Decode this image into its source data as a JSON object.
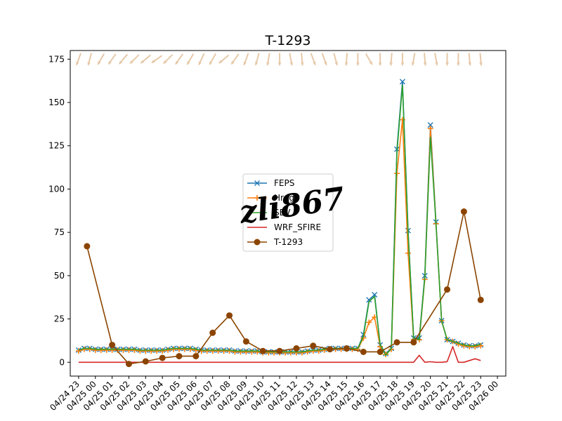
{
  "chart_data": {
    "type": "line",
    "title": "T-1293",
    "xlabel": "",
    "ylabel": "",
    "ylim": [
      -8,
      180
    ],
    "y_ticks": [
      0,
      25,
      50,
      75,
      100,
      125,
      150,
      175
    ],
    "x_start": "04/24 22:30",
    "x_end": "04/26 00:30",
    "x_ticks": [
      "04/24 23",
      "04/25 00",
      "04/25 01",
      "04/25 02",
      "04/25 03",
      "04/25 04",
      "04/25 05",
      "04/25 06",
      "04/25 07",
      "04/25 08",
      "04/25 09",
      "04/25 10",
      "04/25 11",
      "04/25 12",
      "04/25 13",
      "04/25 14",
      "04/25 15",
      "04/25 16",
      "04/25 17",
      "04/25 18",
      "04/25 19",
      "04/25 20",
      "04/25 21",
      "04/25 22",
      "04/25 23",
      "04/26 00"
    ],
    "legend_position": "center",
    "series": [
      {
        "name": "FEPS",
        "color": "#1f77b4",
        "marker": "x",
        "x": [
          "04/24 23:00",
          "04/24 23:20",
          "04/24 23:40",
          "04/25 00:00",
          "04/25 00:20",
          "04/25 00:40",
          "04/25 01:00",
          "04/25 01:20",
          "04/25 01:40",
          "04/25 02:00",
          "04/25 02:20",
          "04/25 02:40",
          "04/25 03:00",
          "04/25 03:20",
          "04/25 03:40",
          "04/25 04:00",
          "04/25 04:20",
          "04/25 04:40",
          "04/25 05:00",
          "04/25 05:20",
          "04/25 05:40",
          "04/25 06:00",
          "04/25 06:20",
          "04/25 06:40",
          "04/25 07:00",
          "04/25 07:20",
          "04/25 07:40",
          "04/25 08:00",
          "04/25 08:20",
          "04/25 08:40",
          "04/25 09:00",
          "04/25 09:20",
          "04/25 09:40",
          "04/25 10:00",
          "04/25 10:20",
          "04/25 10:40",
          "04/25 11:00",
          "04/25 11:20",
          "04/25 11:40",
          "04/25 12:00",
          "04/25 12:20",
          "04/25 12:40",
          "04/25 13:00",
          "04/25 13:20",
          "04/25 13:40",
          "04/25 14:00",
          "04/25 14:20",
          "04/25 14:40",
          "04/25 15:00",
          "04/25 15:20",
          "04/25 15:40",
          "04/25 16:00",
          "04/25 16:20",
          "04/25 16:40",
          "04/25 17:00",
          "04/25 17:20",
          "04/25 17:40",
          "04/25 18:00",
          "04/25 18:20",
          "04/25 18:40",
          "04/25 19:00",
          "04/25 19:20",
          "04/25 19:40",
          "04/25 20:00",
          "04/25 20:20",
          "04/25 20:40",
          "04/25 21:00",
          "04/25 21:20",
          "04/25 21:40",
          "04/25 22:00",
          "04/25 22:20",
          "04/25 22:40",
          "04/25 23:00"
        ],
        "values": [
          7,
          8,
          8,
          7.5,
          7.5,
          7.5,
          7.5,
          7.5,
          7.5,
          7.5,
          7.5,
          7,
          7,
          7,
          7,
          7,
          7.5,
          8,
          8,
          8,
          8,
          7.5,
          7,
          7,
          7,
          7,
          7,
          7,
          6.5,
          6.5,
          6.5,
          6.5,
          6.5,
          6,
          6,
          6,
          6,
          6,
          6,
          6,
          6,
          6.5,
          7,
          7,
          7.5,
          8,
          8,
          8,
          8,
          8,
          8,
          16,
          36,
          39,
          10,
          5,
          8,
          123,
          162,
          76,
          14,
          14,
          50,
          137,
          81,
          24,
          13,
          12,
          11,
          10,
          9.5,
          9.5,
          10
        ]
      },
      {
        "name": "Hrdgs",
        "color": "#ff7f0e",
        "marker": "+",
        "x": [
          "04/24 23:00",
          "04/24 23:20",
          "04/24 23:40",
          "04/25 00:00",
          "04/25 00:20",
          "04/25 00:40",
          "04/25 01:00",
          "04/25 01:20",
          "04/25 01:40",
          "04/25 02:00",
          "04/25 02:20",
          "04/25 02:40",
          "04/25 03:00",
          "04/25 03:20",
          "04/25 03:40",
          "04/25 04:00",
          "04/25 04:20",
          "04/25 04:40",
          "04/25 05:00",
          "04/25 05:20",
          "04/25 05:40",
          "04/25 06:00",
          "04/25 06:20",
          "04/25 06:40",
          "04/25 07:00",
          "04/25 07:20",
          "04/25 07:40",
          "04/25 08:00",
          "04/25 08:20",
          "04/25 08:40",
          "04/25 09:00",
          "04/25 09:20",
          "04/25 09:40",
          "04/25 10:00",
          "04/25 10:20",
          "04/25 10:40",
          "04/25 11:00",
          "04/25 11:20",
          "04/25 11:40",
          "04/25 12:00",
          "04/25 12:20",
          "04/25 12:40",
          "04/25 13:00",
          "04/25 13:20",
          "04/25 13:40",
          "04/25 14:00",
          "04/25 14:20",
          "04/25 14:40",
          "04/25 15:00",
          "04/25 15:20",
          "04/25 15:40",
          "04/25 16:00",
          "04/25 16:20",
          "04/25 16:40",
          "04/25 17:00",
          "04/25 17:20",
          "04/25 17:40",
          "04/25 18:00",
          "04/25 18:20",
          "04/25 18:40",
          "04/25 19:00",
          "04/25 19:20",
          "04/25 19:40",
          "04/25 20:00",
          "04/25 20:20",
          "04/25 20:40",
          "04/25 21:00",
          "04/25 21:20",
          "04/25 21:40",
          "04/25 22:00",
          "04/25 22:20",
          "04/25 22:40",
          "04/25 23:00"
        ],
        "values": [
          6.5,
          7.5,
          7.5,
          7,
          7,
          7,
          7,
          7,
          7,
          7,
          7,
          6.5,
          6.5,
          6.5,
          6.5,
          6.5,
          7,
          7.5,
          7.5,
          7.5,
          7.5,
          7,
          6.5,
          6.5,
          6.5,
          6.5,
          6.5,
          6.5,
          6,
          6,
          6,
          6,
          6,
          5.5,
          5.5,
          5.5,
          5.5,
          5.5,
          5.5,
          5.5,
          5.5,
          6,
          6.5,
          6.5,
          7,
          7.5,
          7.5,
          7.5,
          7.5,
          7.5,
          7.5,
          14,
          23,
          26,
          9,
          4.5,
          7.5,
          109,
          140,
          63,
          13,
          13,
          48,
          135,
          80,
          24,
          13,
          12,
          10.5,
          9.5,
          9,
          9,
          9.5
        ]
      },
      {
        "name": "SEV",
        "color": "#2ca02c",
        "marker": "",
        "x": [
          "04/24 23:00",
          "04/24 23:20",
          "04/24 23:40",
          "04/25 00:00",
          "04/25 00:20",
          "04/25 00:40",
          "04/25 01:00",
          "04/25 01:20",
          "04/25 01:40",
          "04/25 02:00",
          "04/25 02:20",
          "04/25 02:40",
          "04/25 03:00",
          "04/25 03:20",
          "04/25 03:40",
          "04/25 04:00",
          "04/25 04:20",
          "04/25 04:40",
          "04/25 05:00",
          "04/25 05:20",
          "04/25 05:40",
          "04/25 06:00",
          "04/25 06:20",
          "04/25 06:40",
          "04/25 07:00",
          "04/25 07:20",
          "04/25 07:40",
          "04/25 08:00",
          "04/25 08:20",
          "04/25 08:40",
          "04/25 09:00",
          "04/25 09:20",
          "04/25 09:40",
          "04/25 10:00",
          "04/25 10:20",
          "04/25 10:40",
          "04/25 11:00",
          "04/25 11:20",
          "04/25 11:40",
          "04/25 12:00",
          "04/25 12:20",
          "04/25 12:40",
          "04/25 13:00",
          "04/25 13:20",
          "04/25 13:40",
          "04/25 14:00",
          "04/25 14:20",
          "04/25 14:40",
          "04/25 15:00",
          "04/25 15:20",
          "04/25 15:40",
          "04/25 16:00",
          "04/25 16:20",
          "04/25 16:40",
          "04/25 17:00",
          "04/25 17:20",
          "04/25 17:40",
          "04/25 18:00",
          "04/25 18:20",
          "04/25 18:40",
          "04/25 19:00",
          "04/25 19:20",
          "04/25 19:40",
          "04/25 20:00",
          "04/25 20:20",
          "04/25 20:40",
          "04/25 21:00",
          "04/25 21:20",
          "04/25 21:40",
          "04/25 22:00",
          "04/25 22:20",
          "04/25 22:40",
          "04/25 23:00"
        ],
        "values": [
          7,
          8,
          8,
          7.5,
          7.5,
          7.5,
          7.5,
          7.5,
          7.5,
          7.5,
          7.5,
          7,
          7,
          7,
          7,
          7,
          7.5,
          8,
          8,
          8,
          8,
          7.5,
          7,
          7,
          7,
          7,
          7,
          7,
          6.5,
          6.5,
          6.5,
          6.5,
          6.5,
          6,
          6,
          6,
          6,
          6,
          6,
          6,
          6,
          6.5,
          7,
          7,
          7.5,
          8,
          8,
          8,
          8,
          8,
          8,
          15,
          35,
          38,
          10,
          4,
          8,
          121,
          160,
          75,
          14,
          13,
          49,
          130,
          80,
          24,
          13,
          12,
          11,
          10,
          9.5,
          9.5,
          10.5
        ]
      },
      {
        "name": "WRF_SFIRE",
        "color": "#d62728",
        "marker": "",
        "x": [
          "04/24 23:00",
          "04/25 19:00",
          "04/25 19:20",
          "04/25 19:40",
          "04/25 20:00",
          "04/25 20:20",
          "04/25 20:40",
          "04/25 21:00",
          "04/25 21:20",
          "04/25 21:40",
          "04/25 22:00",
          "04/25 22:20",
          "04/25 22:40",
          "04/25 23:00"
        ],
        "values": [
          0,
          0,
          4,
          0,
          0.3,
          0,
          0,
          0.3,
          9,
          0,
          0,
          1,
          2,
          1
        ]
      },
      {
        "name": "T-1293",
        "color": "#8b4400",
        "marker": "o",
        "x": [
          "04/24 23:30",
          "04/25 01:00",
          "04/25 02:00",
          "04/25 03:00",
          "04/25 04:00",
          "04/25 05:00",
          "04/25 06:00",
          "04/25 07:00",
          "04/25 08:00",
          "04/25 09:00",
          "04/25 10:00",
          "04/25 11:00",
          "04/25 12:00",
          "04/25 13:00",
          "04/25 14:00",
          "04/25 15:00",
          "04/25 16:00",
          "04/25 17:00",
          "04/25 18:00",
          "04/25 19:00",
          "04/25 21:00",
          "04/25 22:00",
          "04/25 23:00"
        ],
        "values": [
          67,
          10,
          -1,
          0.5,
          2.5,
          3.5,
          3.5,
          17,
          27,
          12,
          6.5,
          6.5,
          8,
          9.5,
          7.5,
          8,
          6,
          6,
          11.5,
          11.5,
          42,
          87,
          36
        ]
      }
    ],
    "wind_arrows": {
      "color": "#e6c9a8",
      "y_level": 175,
      "directions_deg": [
        200,
        195,
        210,
        215,
        220,
        225,
        230,
        235,
        225,
        215,
        210,
        205,
        210,
        230,
        215,
        200,
        195,
        190,
        180,
        170,
        175,
        160,
        160,
        165,
        185,
        180,
        150,
        180,
        185,
        180,
        190,
        175,
        170,
        180,
        180,
        175,
        175
      ]
    }
  },
  "watermark": {
    "text": "zli867"
  }
}
